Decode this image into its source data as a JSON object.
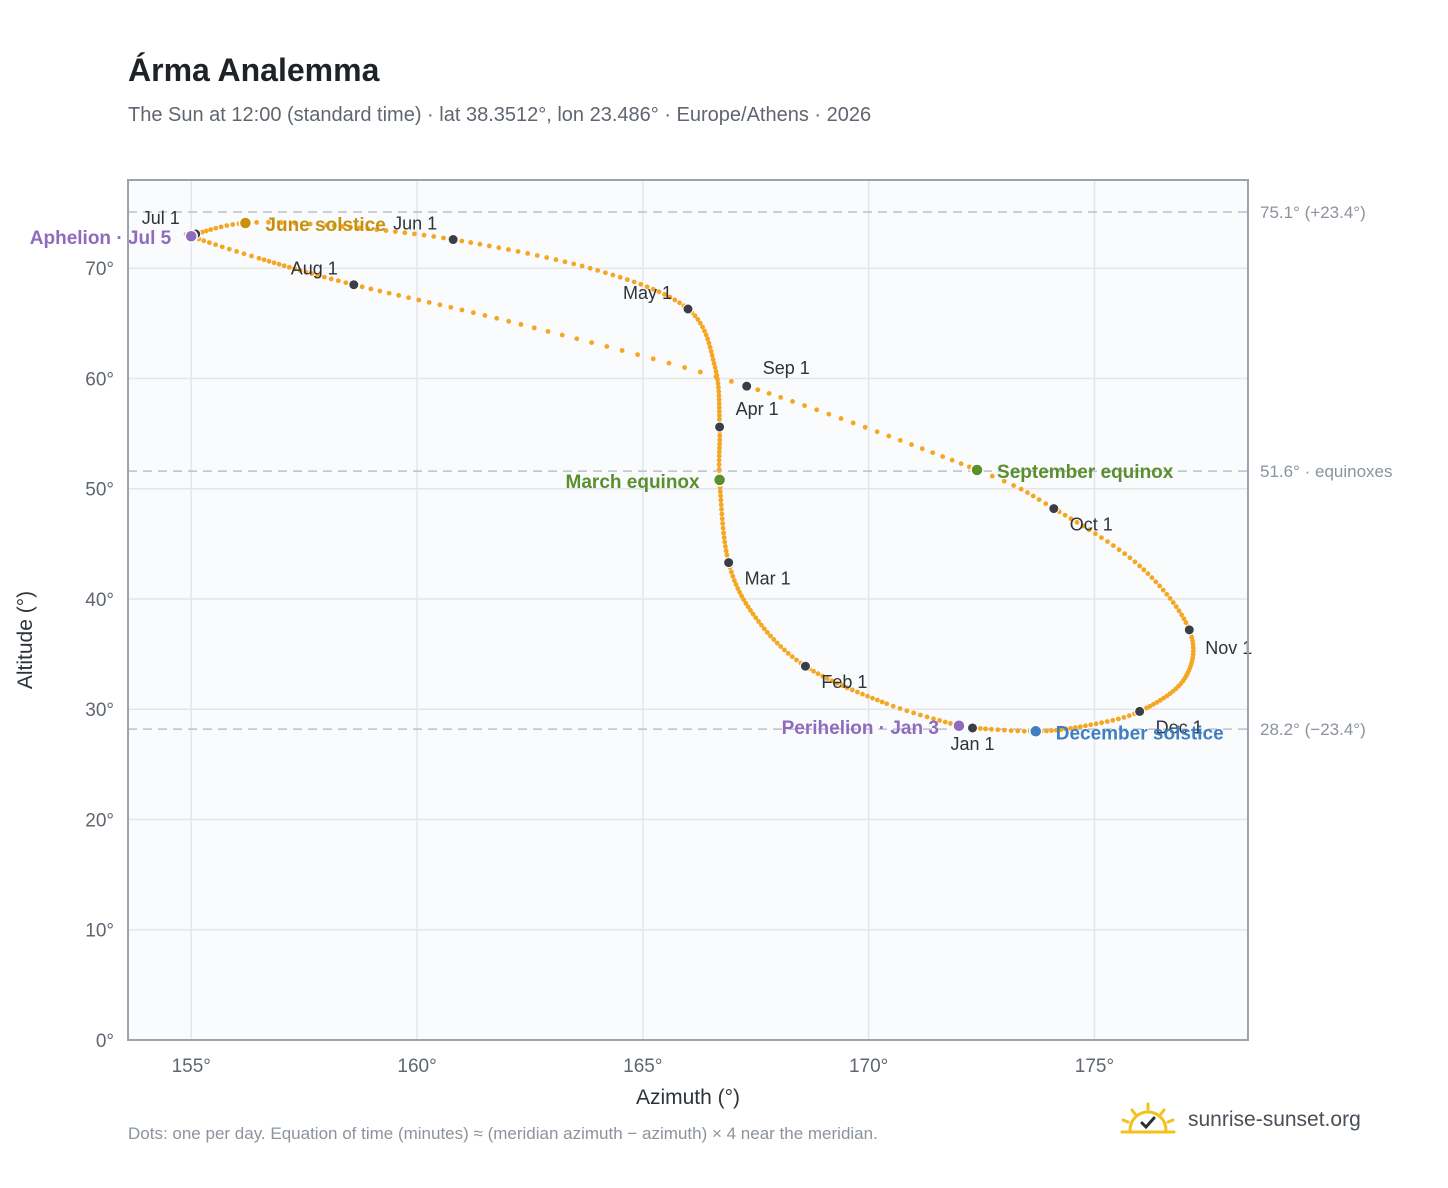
{
  "title": "Árma Analemma",
  "subtitle": "The Sun at 12:00 (standard time) · lat 38.3512°, lon 23.486° · Europe/Athens · 2026",
  "footnote": "Dots: one per day. Equation of time (minutes) ≈ (meridian azimuth − azimuth) × 4 near the meridian.",
  "brand": {
    "text": "sunrise-sunset.org",
    "icon": "sun-logo-icon"
  },
  "colors": {
    "curve": "#f5a623",
    "month_dot": "#3a3f47",
    "solstice_june": "#c8900e",
    "equinox": "#5a8f2e",
    "solstice_december": "#3f7fc0",
    "apsis": "#8e6bbd",
    "grid": "#e3e7ec",
    "reference_line": "#b9c2cc",
    "plot_bg": "#f9fbfd",
    "frame": "#9aa3af"
  },
  "chart_data": {
    "type": "scatter",
    "title": "Árma Analemma",
    "xlabel": "Azimuth (°)",
    "ylabel": "Altitude (°)",
    "xlim": [
      153.6,
      178.4
    ],
    "ylim": [
      0,
      78
    ],
    "x_ticks": [
      155,
      160,
      165,
      170,
      175
    ],
    "x_tick_labels": [
      "155°",
      "160°",
      "165°",
      "170°",
      "175°"
    ],
    "y_ticks": [
      0,
      10,
      20,
      30,
      40,
      50,
      60,
      70
    ],
    "y_tick_labels": [
      "0°",
      "10°",
      "20°",
      "30°",
      "40°",
      "50°",
      "60°",
      "70°"
    ],
    "grid": true,
    "reference_lines": [
      {
        "y": 75.1,
        "label": "75.1° (+23.4°)"
      },
      {
        "y": 51.6,
        "label": "51.6° · equinoxes"
      },
      {
        "y": 28.2,
        "label": "28.2° (−23.4°)"
      }
    ],
    "daily_path": [
      {
        "doy": 1,
        "x": 172.3,
        "y": 28.3
      },
      {
        "doy": 3,
        "x": 172.0,
        "y": 28.5
      },
      {
        "doy": 15,
        "x": 170.4,
        "y": 30.5
      },
      {
        "doy": 32,
        "x": 168.6,
        "y": 33.9
      },
      {
        "doy": 46,
        "x": 167.5,
        "y": 38.3
      },
      {
        "doy": 60,
        "x": 166.9,
        "y": 43.3
      },
      {
        "doy": 79,
        "x": 166.7,
        "y": 50.8
      },
      {
        "doy": 91,
        "x": 166.7,
        "y": 55.6
      },
      {
        "doy": 106,
        "x": 166.6,
        "y": 61.0
      },
      {
        "doy": 121,
        "x": 166.0,
        "y": 66.3
      },
      {
        "doy": 136,
        "x": 164.0,
        "y": 69.8
      },
      {
        "doy": 152,
        "x": 160.8,
        "y": 72.6
      },
      {
        "doy": 166,
        "x": 158.0,
        "y": 73.9
      },
      {
        "doy": 172,
        "x": 156.2,
        "y": 74.1
      },
      {
        "doy": 182,
        "x": 155.1,
        "y": 73.1
      },
      {
        "doy": 186,
        "x": 155.0,
        "y": 72.9
      },
      {
        "doy": 197,
        "x": 156.5,
        "y": 70.9
      },
      {
        "doy": 213,
        "x": 158.6,
        "y": 68.5
      },
      {
        "doy": 229,
        "x": 162.3,
        "y": 64.9
      },
      {
        "doy": 244,
        "x": 167.3,
        "y": 59.3
      },
      {
        "doy": 265,
        "x": 172.4,
        "y": 51.7
      },
      {
        "doy": 274,
        "x": 174.1,
        "y": 48.2
      },
      {
        "doy": 289,
        "x": 176.0,
        "y": 43.0
      },
      {
        "doy": 305,
        "x": 177.1,
        "y": 37.2
      },
      {
        "doy": 320,
        "x": 177.0,
        "y": 32.8
      },
      {
        "doy": 335,
        "x": 176.0,
        "y": 29.8
      },
      {
        "doy": 345,
        "x": 174.8,
        "y": 28.5
      },
      {
        "doy": 355,
        "x": 173.7,
        "y": 28.0
      },
      {
        "doy": 366,
        "x": 172.3,
        "y": 28.3
      }
    ],
    "month_markers": [
      {
        "label": "Jan 1",
        "x": 172.3,
        "y": 28.3,
        "anchor": "below"
      },
      {
        "label": "Feb 1",
        "x": 168.6,
        "y": 33.9,
        "anchor": "below-right"
      },
      {
        "label": "Mar 1",
        "x": 166.9,
        "y": 43.3,
        "anchor": "below-right"
      },
      {
        "label": "Apr 1",
        "x": 166.7,
        "y": 55.6,
        "anchor": "above-right"
      },
      {
        "label": "May 1",
        "x": 166.0,
        "y": 66.3,
        "anchor": "above-left"
      },
      {
        "label": "Jun 1",
        "x": 160.8,
        "y": 72.6,
        "anchor": "above-left"
      },
      {
        "label": "Jul 1",
        "x": 155.1,
        "y": 73.1,
        "anchor": "above-left"
      },
      {
        "label": "Aug 1",
        "x": 158.6,
        "y": 68.5,
        "anchor": "above-left"
      },
      {
        "label": "Sep 1",
        "x": 167.3,
        "y": 59.3,
        "anchor": "above-right"
      },
      {
        "label": "Oct 1",
        "x": 174.1,
        "y": 48.2,
        "anchor": "below-right"
      },
      {
        "label": "Nov 1",
        "x": 177.1,
        "y": 37.2,
        "anchor": "right"
      },
      {
        "label": "Dec 1",
        "x": 176.0,
        "y": 29.8,
        "anchor": "below-right"
      }
    ],
    "events": [
      {
        "label": "June solstice",
        "x": 156.2,
        "y": 74.1,
        "color_key": "solstice_june",
        "anchor": "right"
      },
      {
        "label": "March equinox",
        "x": 166.7,
        "y": 50.8,
        "color_key": "equinox",
        "anchor": "left"
      },
      {
        "label": "September equinox",
        "x": 172.4,
        "y": 51.7,
        "color_key": "equinox",
        "anchor": "right"
      },
      {
        "label": "December solstice",
        "x": 173.7,
        "y": 28.0,
        "color_key": "solstice_december",
        "anchor": "right"
      },
      {
        "label": "Aphelion · Jul 5",
        "x": 155.0,
        "y": 72.9,
        "color_key": "apsis",
        "anchor": "left"
      },
      {
        "label": "Perihelion · Jan 3",
        "x": 172.0,
        "y": 28.5,
        "color_key": "apsis",
        "anchor": "left"
      }
    ]
  }
}
